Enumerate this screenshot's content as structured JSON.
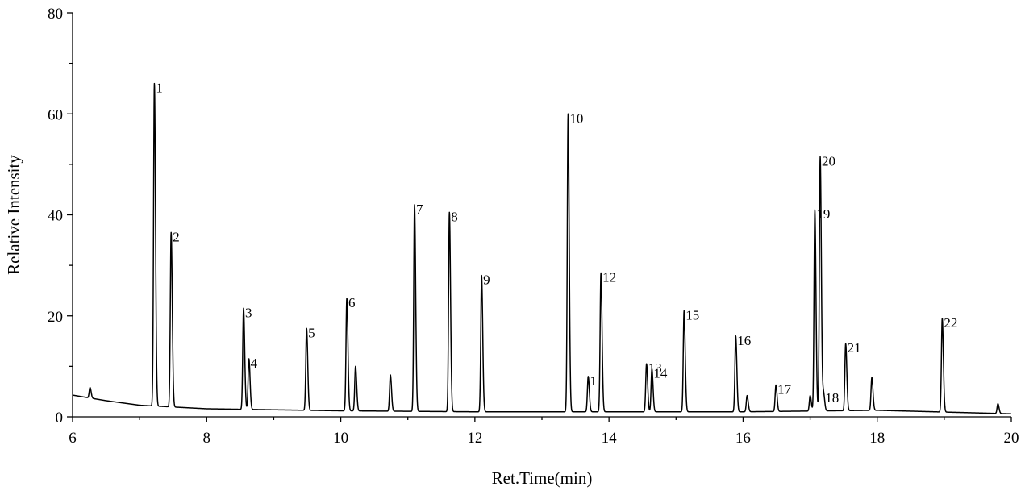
{
  "chart_data": {
    "type": "line",
    "title": "",
    "xlabel": "Ret.Time(min)",
    "ylabel": "Relative Intensity",
    "xlim": [
      6,
      20
    ],
    "ylim": [
      0,
      80
    ],
    "x_ticks": [
      6,
      8,
      10,
      12,
      14,
      16,
      18,
      20
    ],
    "y_ticks": [
      0,
      20,
      40,
      60,
      80
    ],
    "grid": false,
    "legend": "none",
    "line_color": "#000000",
    "baseline": [
      [
        6.0,
        4.3
      ],
      [
        6.5,
        3.2
      ],
      [
        7.0,
        2.3
      ],
      [
        8.0,
        1.6
      ],
      [
        10.0,
        1.2
      ],
      [
        12.0,
        1.0
      ],
      [
        14.0,
        1.0
      ],
      [
        16.0,
        1.0
      ],
      [
        18.0,
        1.3
      ],
      [
        20.0,
        0.6
      ]
    ],
    "peaks": [
      {
        "label": "",
        "rt": 6.26,
        "height": 5.8
      },
      {
        "label": "1",
        "rt": 7.22,
        "height": 66
      },
      {
        "label": "2",
        "rt": 7.47,
        "height": 36.5
      },
      {
        "label": "3",
        "rt": 8.55,
        "height": 21.5
      },
      {
        "label": "4",
        "rt": 8.63,
        "height": 11.5
      },
      {
        "label": "5",
        "rt": 9.49,
        "height": 17.5
      },
      {
        "label": "6",
        "rt": 10.09,
        "height": 23.5
      },
      {
        "label": "",
        "rt": 10.22,
        "height": 10
      },
      {
        "label": "",
        "rt": 10.74,
        "height": 8.3
      },
      {
        "label": "7",
        "rt": 11.1,
        "height": 42
      },
      {
        "label": "8",
        "rt": 11.62,
        "height": 40.5
      },
      {
        "label": "9",
        "rt": 12.1,
        "height": 28
      },
      {
        "label": "10",
        "rt": 13.39,
        "height": 60
      },
      {
        "label": "1",
        "rt": 13.69,
        "height": 8
      },
      {
        "label": "12",
        "rt": 13.88,
        "height": 28.5
      },
      {
        "label": "13",
        "rt": 14.56,
        "height": 10.5
      },
      {
        "label": "14",
        "rt": 14.64,
        "height": 9.5
      },
      {
        "label": "15",
        "rt": 15.12,
        "height": 21
      },
      {
        "label": "16",
        "rt": 15.89,
        "height": 16
      },
      {
        "label": "",
        "rt": 16.06,
        "height": 4.2
      },
      {
        "label": "17",
        "rt": 16.49,
        "height": 6.3
      },
      {
        "label": "",
        "rt": 17.0,
        "height": 4.2
      },
      {
        "label": "19",
        "rt": 17.07,
        "height": 41
      },
      {
        "label": "20",
        "rt": 17.15,
        "height": 51.5
      },
      {
        "label": "18",
        "rt": 17.2,
        "height": 4.6
      },
      {
        "label": "21",
        "rt": 17.53,
        "height": 14.5
      },
      {
        "label": "",
        "rt": 17.92,
        "height": 7.8
      },
      {
        "label": "22",
        "rt": 18.97,
        "height": 19.5
      },
      {
        "label": "",
        "rt": 19.8,
        "height": 2.6
      }
    ]
  }
}
